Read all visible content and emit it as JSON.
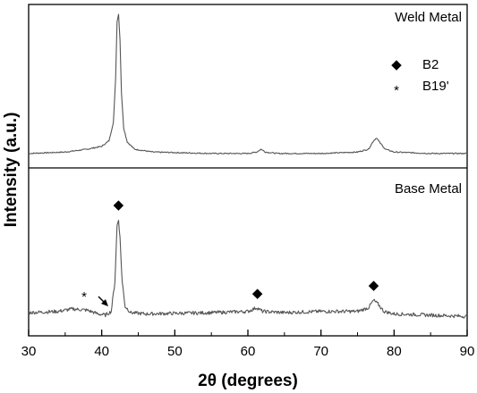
{
  "chart_data": [
    {
      "type": "line",
      "panel": "top",
      "label": "Weld Metal",
      "x_range": [
        30,
        90
      ],
      "series": [
        {
          "name": "Weld Metal",
          "x": [
            30,
            35,
            38,
            40,
            41,
            41.6,
            41.9,
            42.1,
            42.3,
            42.5,
            42.7,
            43.0,
            43.5,
            44.5,
            47,
            55,
            60,
            61.2,
            61.8,
            62.4,
            64,
            70,
            75,
            76.5,
            77.2,
            77.6,
            78.0,
            78.8,
            80,
            85,
            90
          ],
          "y": [
            0.02,
            0.03,
            0.05,
            0.07,
            0.11,
            0.24,
            0.55,
            0.95,
            1.0,
            0.82,
            0.45,
            0.2,
            0.1,
            0.05,
            0.03,
            0.02,
            0.02,
            0.03,
            0.05,
            0.03,
            0.02,
            0.02,
            0.03,
            0.05,
            0.11,
            0.13,
            0.1,
            0.05,
            0.03,
            0.02,
            0.02
          ]
        }
      ],
      "legend": [
        {
          "symbol": "◆",
          "label": "B2"
        },
        {
          "symbol": "*",
          "label": "B19'"
        }
      ]
    },
    {
      "type": "line",
      "panel": "bottom",
      "label": "Base Metal",
      "x_range": [
        30,
        90
      ],
      "xlabel": "2θ (degrees)",
      "ylabel": "Intensity (a.u.)",
      "xticks": [
        30,
        40,
        50,
        60,
        70,
        80,
        90
      ],
      "series": [
        {
          "name": "Base Metal",
          "x": [
            30,
            34,
            36,
            38,
            39.5,
            40.5,
            41.3,
            41.8,
            42.1,
            42.3,
            42.5,
            42.8,
            43.2,
            44,
            46,
            55,
            60,
            61.2,
            62,
            65,
            70,
            75,
            76.5,
            77.2,
            77.8,
            78.6,
            80,
            85,
            90
          ],
          "y": [
            0.05,
            0.06,
            0.08,
            0.07,
            0.04,
            0.03,
            0.06,
            0.3,
            0.75,
            0.8,
            0.65,
            0.3,
            0.1,
            0.05,
            0.04,
            0.05,
            0.06,
            0.09,
            0.06,
            0.05,
            0.06,
            0.06,
            0.09,
            0.15,
            0.12,
            0.06,
            0.04,
            0.03,
            0.02
          ]
        }
      ],
      "markers": [
        {
          "symbol": "◆",
          "x": 42.3,
          "phase": "B2"
        },
        {
          "symbol": "◆",
          "x": 61.3,
          "phase": "B2"
        },
        {
          "symbol": "◆",
          "x": 77.2,
          "phase": "B2"
        },
        {
          "symbol": "*",
          "x": 39.2,
          "phase": "B19'"
        }
      ]
    }
  ]
}
